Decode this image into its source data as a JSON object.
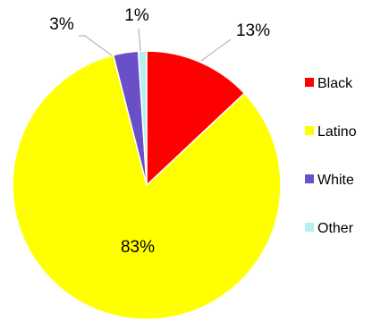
{
  "chart_data": {
    "type": "pie",
    "title": "",
    "categories": [
      "Black",
      "Latino",
      "White",
      "Other"
    ],
    "values": [
      13,
      83,
      3,
      1
    ],
    "labels": [
      "13%",
      "83%",
      "3%",
      "1%"
    ],
    "unit": "%",
    "colors": [
      "#FF0000",
      "#FFFF00",
      "#6A4FC8",
      "#B7EFEF"
    ],
    "legend_position": "right",
    "start_angle": "12 o'clock",
    "direction": "clockwise"
  }
}
